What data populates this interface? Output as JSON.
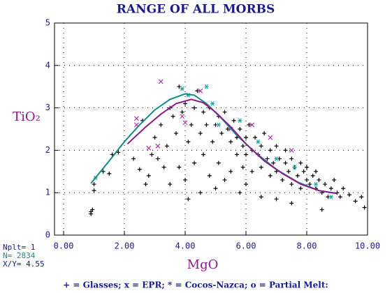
{
  "chart_data": {
    "type": "scatter",
    "title": "RANGE OF ALL MORBS",
    "x_label": "MgO",
    "y_label": "TiO₂",
    "annotations": [
      "Nplt= 1",
      "N=  2834",
      "X/Y= 4.55"
    ],
    "legend_text": "+ = Glasses; x = EPR; * = Cocos-Nazca; o = Partial Melt:",
    "xlim": [
      -0.3,
      10.0
    ],
    "ylim": [
      0,
      5
    ],
    "xticks": [
      {
        "value": 0,
        "label": "0.00"
      },
      {
        "value": 2,
        "label": "2.00"
      },
      {
        "value": 4,
        "label": "4.00"
      },
      {
        "value": 6,
        "label": "6.00"
      },
      {
        "value": 8,
        "label": "8.00"
      },
      {
        "value": 10,
        "label": "10.00"
      }
    ],
    "yticks": [
      0,
      1,
      2,
      3,
      4,
      5
    ],
    "grid": true,
    "series": [
      {
        "type": "scatter",
        "marker": "+",
        "color": "#000000",
        "x": [
          0.9,
          0.95,
          0.9,
          1.0,
          1.3,
          1.5,
          1.6,
          1.8,
          1.0,
          2.3,
          2.5,
          2.6,
          2.7,
          2.8,
          2.9,
          3.0,
          3.1,
          3.2,
          3.3,
          3.4,
          3.5,
          3.5,
          3.6,
          3.7,
          3.8,
          3.8,
          3.9,
          4.0,
          4.0,
          4.1,
          4.1,
          4.2,
          4.3,
          4.3,
          4.4,
          4.5,
          4.5,
          4.6,
          4.6,
          4.7,
          4.8,
          4.8,
          4.9,
          5.0,
          5.0,
          5.1,
          5.1,
          5.2,
          5.3,
          5.3,
          5.4,
          5.5,
          5.5,
          5.6,
          5.7,
          5.7,
          5.8,
          5.9,
          5.9,
          6.0,
          6.0,
          6.1,
          6.2,
          6.2,
          6.3,
          6.4,
          6.5,
          6.5,
          6.6,
          6.7,
          6.8,
          6.8,
          6.9,
          7.0,
          7.0,
          7.1,
          7.2,
          7.3,
          7.3,
          7.4,
          7.5,
          7.5,
          7.6,
          7.7,
          7.8,
          7.8,
          7.9,
          8.0,
          8.0,
          8.1,
          8.2,
          8.3,
          8.3,
          8.4,
          8.5,
          8.6,
          8.7,
          8.8,
          8.9,
          9.0,
          9.1,
          9.2,
          9.4,
          9.6,
          9.8,
          9.9,
          7.0,
          6.5,
          7.5,
          8.5,
          6.0,
          5.8
        ],
        "y": [
          0.55,
          0.6,
          0.5,
          1.2,
          1.5,
          1.45,
          1.9,
          1.95,
          1.05,
          1.8,
          1.55,
          2.7,
          1.2,
          1.4,
          1.9,
          2.3,
          1.8,
          2.6,
          1.6,
          2.1,
          3.0,
          1.2,
          2.8,
          2.4,
          3.5,
          1.6,
          2.9,
          1.3,
          3.1,
          2.2,
          0.85,
          2.6,
          3.0,
          1.7,
          3.4,
          2.4,
          1.0,
          2.9,
          1.9,
          2.6,
          3.0,
          1.4,
          2.2,
          2.6,
          1.1,
          2.8,
          1.7,
          2.4,
          2.9,
          1.3,
          2.5,
          2.2,
          1.5,
          2.7,
          2.3,
          1.9,
          2.5,
          2.1,
          1.6,
          2.3,
          1.9,
          2.6,
          2.0,
          1.5,
          2.3,
          1.9,
          2.1,
          1.6,
          2.4,
          1.8,
          2.0,
          1.4,
          1.7,
          2.1,
          1.5,
          1.8,
          1.3,
          1.7,
          2.0,
          1.5,
          1.8,
          1.2,
          1.6,
          1.4,
          1.7,
          1.1,
          1.5,
          1.3,
          1.6,
          1.2,
          1.4,
          1.1,
          1.5,
          1.3,
          1.0,
          1.2,
          0.9,
          1.1,
          1.3,
          1.0,
          0.9,
          1.1,
          0.95,
          0.8,
          0.9,
          0.65,
          0.85,
          0.9,
          0.75,
          0.6,
          1.2,
          1.0
        ]
      },
      {
        "type": "scatter",
        "marker": "x",
        "color": "#b030b0",
        "x": [
          3.2,
          2.4,
          2.4,
          3.9,
          4.0,
          3.1,
          2.8,
          5.5,
          6.2,
          6.8,
          7.5,
          4.5
        ],
        "y": [
          3.62,
          2.75,
          2.6,
          2.8,
          2.65,
          2.1,
          2.05,
          2.5,
          2.6,
          2.3,
          2.0,
          3.4
        ]
      },
      {
        "type": "scatter",
        "marker": "*",
        "color": "#1aa6a6",
        "x": [
          1.05,
          3.9,
          4.1,
          4.7,
          4.9,
          5.1,
          5.8,
          6.4,
          7.0,
          7.6,
          8.3,
          8.8
        ],
        "y": [
          1.35,
          3.45,
          3.3,
          3.5,
          3.1,
          2.6,
          2.7,
          2.2,
          1.8,
          1.6,
          1.2,
          0.9
        ]
      },
      {
        "type": "line",
        "color": "#128a8a",
        "x": [
          0.9,
          1.5,
          2.0,
          2.5,
          3.0,
          3.5,
          4.0,
          4.3,
          4.7,
          5.2,
          5.7,
          6.3,
          7.0,
          7.7,
          8.4,
          9.0
        ],
        "y": [
          1.22,
          1.75,
          2.2,
          2.6,
          2.95,
          3.2,
          3.33,
          3.3,
          3.1,
          2.75,
          2.35,
          1.95,
          1.55,
          1.25,
          1.05,
          0.98
        ]
      },
      {
        "type": "line",
        "color": "#8a1a8a",
        "x": [
          2.1,
          2.7,
          3.2,
          3.7,
          4.2,
          4.6,
          5.0,
          5.5,
          6.0,
          6.6,
          7.2,
          7.8,
          8.4,
          9.0
        ],
        "y": [
          2.15,
          2.55,
          2.85,
          3.1,
          3.2,
          3.12,
          2.9,
          2.55,
          2.15,
          1.75,
          1.45,
          1.2,
          1.05,
          0.98
        ]
      }
    ]
  }
}
